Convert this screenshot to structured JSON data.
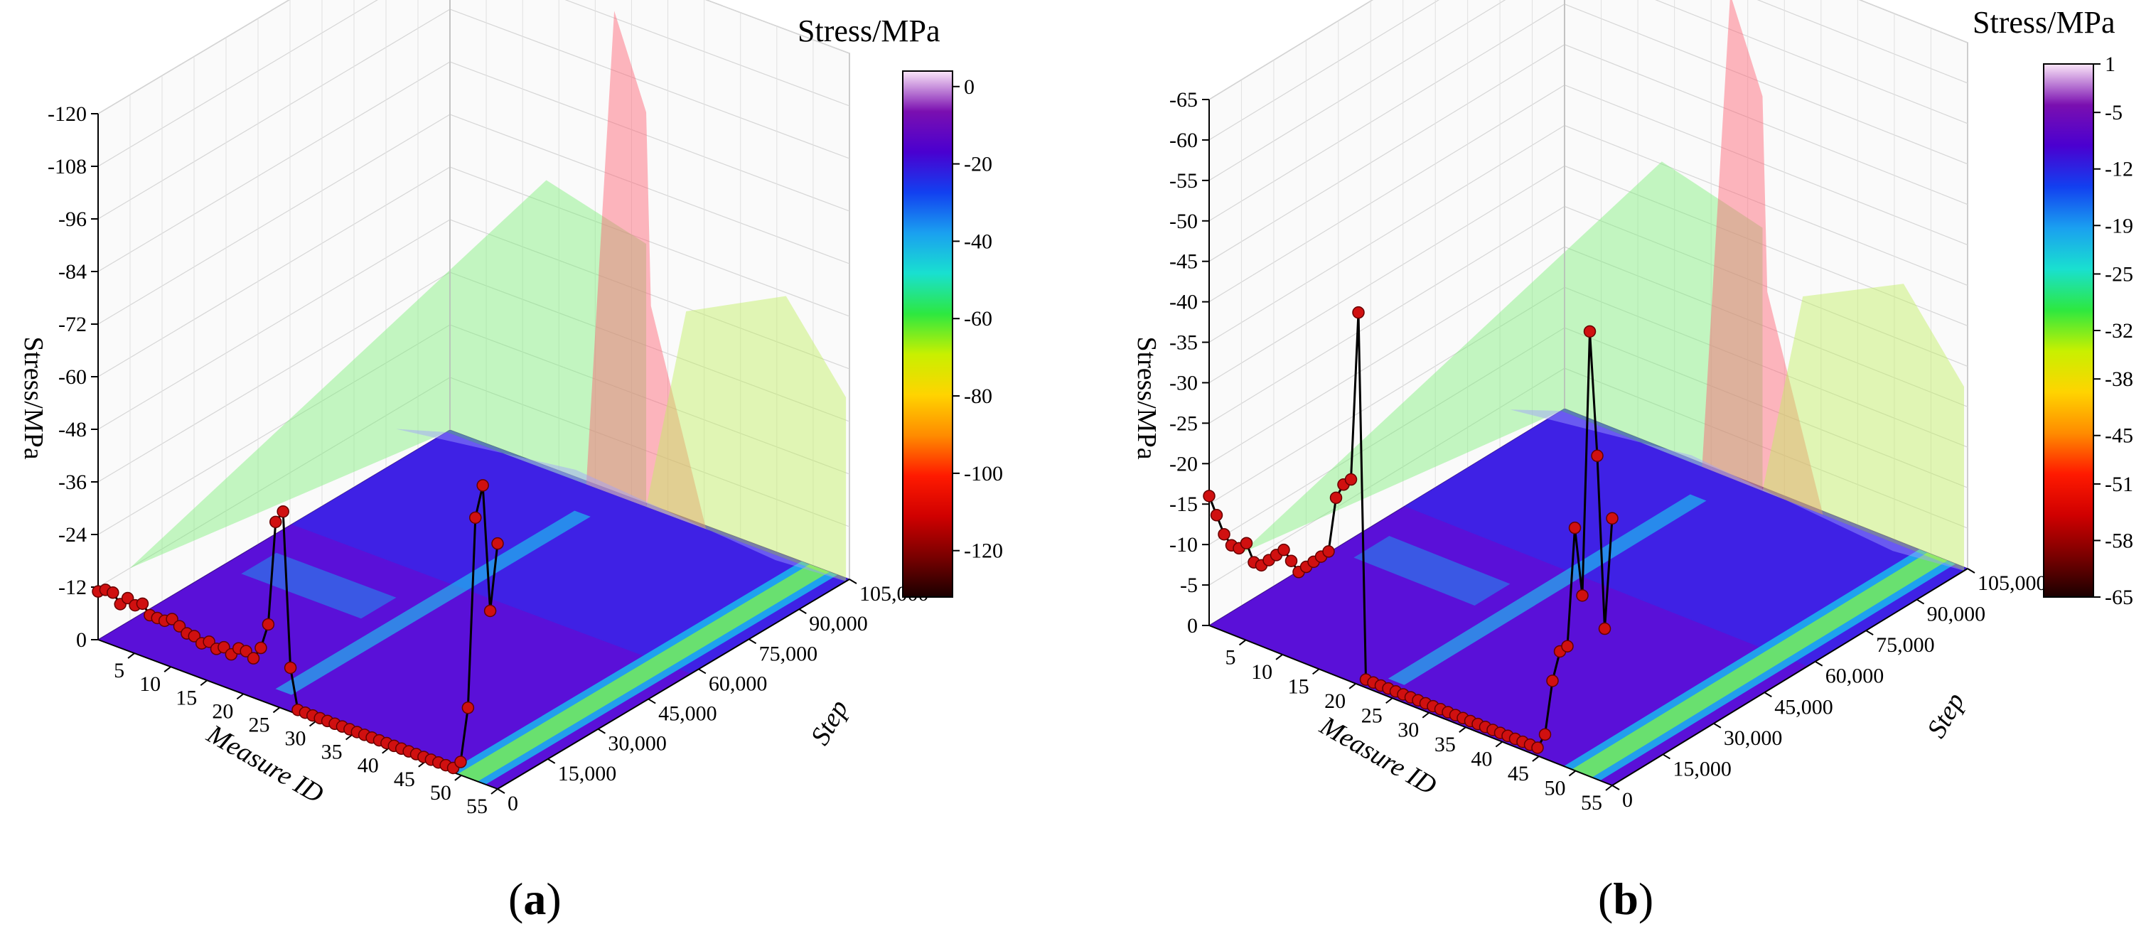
{
  "chart_data": [
    {
      "type": "surface3d",
      "caption_letter": "a",
      "title": "",
      "xlabel": "Measure ID",
      "ylabel": "Step",
      "zlabel": "Stress/MPa",
      "colorbar_title": "Stress/MPa",
      "x_ticks": [
        "5",
        "10",
        "15",
        "20",
        "25",
        "30",
        "35",
        "40",
        "45",
        "50",
        "55"
      ],
      "y_ticks": [
        "0",
        "15,000",
        "30,000",
        "45,000",
        "60,000",
        "75,000",
        "90,000",
        "105,000"
      ],
      "z_ticks": [
        "0",
        "-12",
        "-24",
        "-36",
        "-48",
        "-60",
        "-72",
        "-84",
        "-96",
        "-108",
        "-120"
      ],
      "zlim": [
        0,
        -120
      ],
      "colorbar_ticks": [
        "0",
        "-20",
        "-40",
        "-60",
        "-80",
        "-100",
        "-120"
      ],
      "colorbar_range": [
        4,
        -132
      ],
      "colors": [
        "#fbe7f9",
        "#7a0fb0",
        "#4a00d0",
        "#1240f0",
        "#1aa0f0",
        "#19e0d0",
        "#2de840",
        "#c8f000",
        "#ffd400",
        "#ff8c00",
        "#ff1a00",
        "#d00000",
        "#7a0000",
        "#1a0000"
      ],
      "final_profile": {
        "measure_id": [
          1,
          2,
          3,
          4,
          5,
          6,
          7,
          8,
          9,
          10,
          11,
          12,
          13,
          14,
          15,
          16,
          17,
          18,
          19,
          20,
          21,
          22,
          23,
          24,
          25,
          26,
          27,
          28,
          29,
          30,
          31,
          32,
          33,
          34,
          35,
          36,
          37,
          38,
          39,
          40,
          41,
          42,
          43,
          44,
          45,
          46,
          47,
          48,
          49,
          50,
          51,
          52,
          53,
          54,
          55
        ],
        "stress": [
          -11,
          -12,
          -12,
          -10,
          -12,
          -11,
          -12,
          -10,
          -10,
          -10,
          -11,
          -10,
          -9,
          -9,
          -8,
          -9,
          -8,
          -9,
          -8,
          -10,
          -10,
          -9,
          -12,
          -18,
          -42,
          -45,
          -10,
          -1,
          -1,
          -1,
          -1,
          -1,
          -1,
          -1,
          -1,
          -1,
          -1,
          -1,
          -1,
          -1,
          -1,
          -1,
          -1,
          -1,
          -1,
          -1,
          -1,
          -1,
          -1,
          -3,
          -16,
          -60,
          -68,
          -40,
          -56
        ]
      }
    },
    {
      "type": "surface3d",
      "caption_letter": "b",
      "title": "",
      "xlabel": "Measure ID",
      "ylabel": "Step",
      "zlabel": "Stress/MPa",
      "colorbar_title": "Stress/MPa",
      "x_ticks": [
        "5",
        "10",
        "15",
        "20",
        "25",
        "30",
        "35",
        "40",
        "45",
        "50",
        "55"
      ],
      "y_ticks": [
        "0",
        "15,000",
        "30,000",
        "45,000",
        "60,000",
        "75,000",
        "90,000",
        "105,000"
      ],
      "z_ticks": [
        "0",
        "-5",
        "-10",
        "-15",
        "-20",
        "-25",
        "-30",
        "-35",
        "-40",
        "-45",
        "-50",
        "-55",
        "-60",
        "-65"
      ],
      "zlim": [
        0,
        -65
      ],
      "colorbar_ticks": [
        "1",
        "-5",
        "-12",
        "-19",
        "-25",
        "-32",
        "-38",
        "-45",
        "-51",
        "-58",
        "-65"
      ],
      "colorbar_range": [
        1,
        -65
      ],
      "colors": [
        "#fbe7f9",
        "#7a0fb0",
        "#4a00d0",
        "#1240f0",
        "#1aa0f0",
        "#19e0d0",
        "#2de840",
        "#c8f000",
        "#ffd400",
        "#ff8c00",
        "#ff1a00",
        "#d00000",
        "#7a0000",
        "#1a0000"
      ],
      "final_profile": {
        "measure_id": [
          1,
          2,
          3,
          4,
          5,
          6,
          7,
          8,
          9,
          10,
          11,
          12,
          13,
          14,
          15,
          16,
          17,
          18,
          19,
          20,
          21,
          22,
          23,
          24,
          25,
          26,
          27,
          28,
          29,
          30,
          31,
          32,
          33,
          34,
          35,
          36,
          37,
          38,
          39,
          40,
          41,
          42,
          43,
          44,
          45,
          46,
          47,
          48,
          49,
          50,
          51,
          52,
          53,
          54,
          55
        ],
        "stress": [
          -16,
          -14,
          -12,
          -11,
          -11,
          -12,
          -10,
          -10,
          -11,
          -12,
          -13,
          -12,
          -11,
          -12,
          -13,
          -14,
          -15,
          -22,
          -24,
          -25,
          -46,
          -1,
          -1,
          -1,
          -1,
          -1,
          -1,
          -1,
          -1,
          -1,
          -1,
          -1,
          -1,
          -1,
          -1,
          -1,
          -1,
          -1,
          -1,
          -1,
          -1,
          -1,
          -1,
          -1,
          -1,
          -3,
          -10,
          -14,
          -15,
          -30,
          -22,
          -55,
          -40,
          -19,
          -33
        ]
      }
    }
  ],
  "captions": {
    "a": "a",
    "b": "b"
  }
}
